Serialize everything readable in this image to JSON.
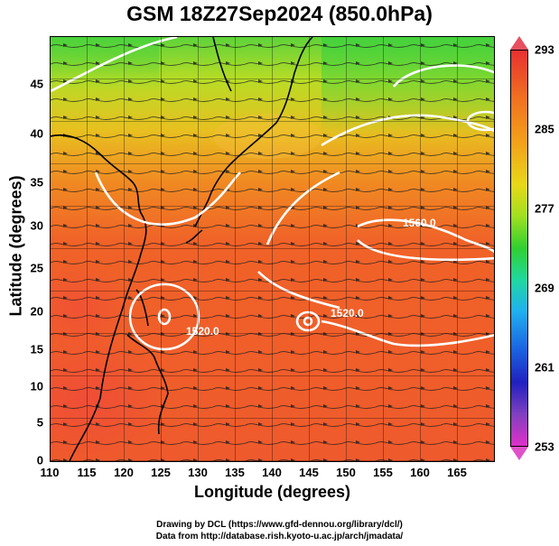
{
  "title": "GSM 18Z27Sep2024 (850.0hPa)",
  "xaxis": {
    "label": "Longitude (degrees)",
    "ticks": [
      "110",
      "115",
      "120",
      "125",
      "130",
      "135",
      "140",
      "145",
      "150",
      "155",
      "160",
      "165"
    ],
    "range": [
      110,
      170
    ]
  },
  "yaxis": {
    "label": "Latitude  (degrees)",
    "ticks": [
      "0",
      "5",
      "10",
      "15",
      "20",
      "25",
      "30",
      "35",
      "40",
      "45"
    ],
    "range": [
      0,
      50
    ]
  },
  "colorbar": {
    "ticks": [
      "293",
      "285",
      "277",
      "269",
      "261",
      "253"
    ],
    "range": [
      253,
      293
    ],
    "colors": [
      "#e83030",
      "#f07020",
      "#f3a41a",
      "#e8d818",
      "#a0e020",
      "#30d030",
      "#20d8a0",
      "#20b0f0",
      "#1a60e0",
      "#2020c0",
      "#8040c0",
      "#e030c8"
    ]
  },
  "contour_labels": [
    "1560.0",
    "1520.0",
    "1520.0"
  ],
  "footer": {
    "line1": "Drawing by DCL (https://www.gfd-dennou.org/library/dcl/)",
    "line2": "Data from http://database.rish.kyoto-u.ac.jp/arch/jmadata/"
  }
}
